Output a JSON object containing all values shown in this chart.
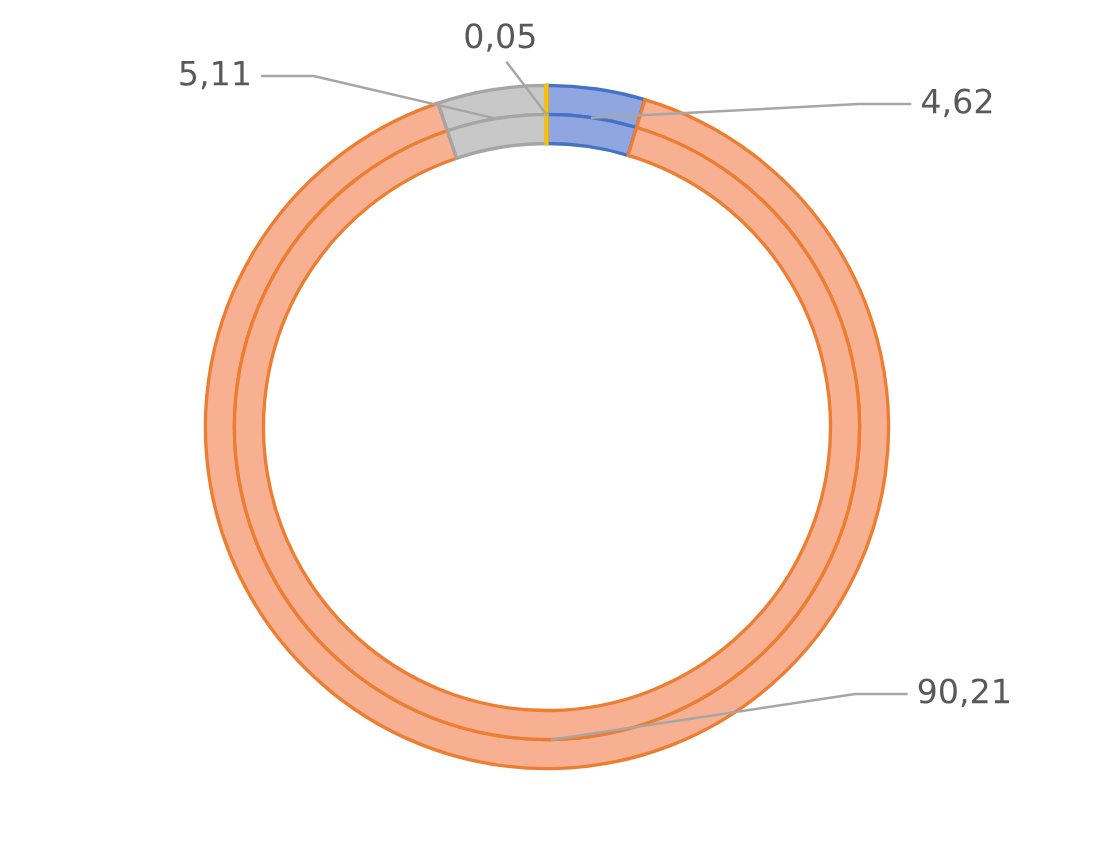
{
  "chart_data": {
    "type": "donut",
    "categories": [
      null,
      null,
      null,
      null
    ],
    "colors": [
      "#8fa6e0",
      "#f7b092",
      "#c8c8c8",
      "#ffc000"
    ],
    "series": [
      {
        "values": [
          4.62,
          90.21,
          5.11,
          0.05
        ],
        "value_labels": [
          "4,62",
          "90,21",
          "5,11",
          "0,05"
        ]
      },
      {
        "values": [
          4.62,
          90.21,
          5.11,
          0.05
        ]
      }
    ],
    "legend": false
  }
}
